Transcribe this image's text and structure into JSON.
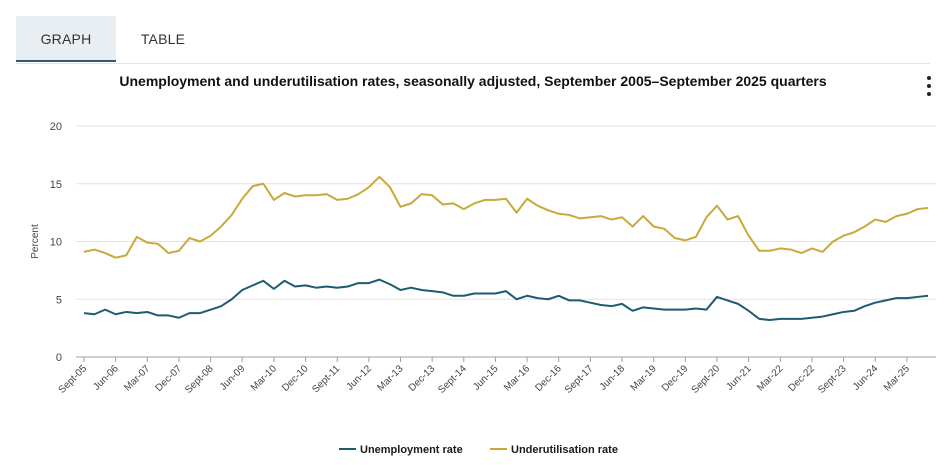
{
  "tabs": [
    {
      "label": "GRAPH",
      "active": true
    },
    {
      "label": "TABLE",
      "active": false
    }
  ],
  "menu_icon": "more-vertical-icon",
  "colors": {
    "unemployment": "#1d5b72",
    "underutilisation": "#c8a93b",
    "grid": "#e3e3e3",
    "axis": "#9aa0a6",
    "tab_accent": "#2a5a75"
  },
  "chart_data": {
    "type": "line",
    "title": "Unemployment and underutilisation rates, seasonally adjusted, September 2005–September 2025 quarters",
    "xlabel": "",
    "ylabel": "Percent",
    "ylim": [
      0,
      20
    ],
    "yticks": [
      0,
      5,
      10,
      15,
      20
    ],
    "grid": true,
    "legend": "bottom-center",
    "xticks": [
      "Sept-05",
      "Jun-06",
      "Mar-07",
      "Dec-07",
      "Sept-08",
      "Jun-09",
      "Mar-10",
      "Dec-10",
      "Sept-11",
      "Jun-12",
      "Mar-13",
      "Dec-13",
      "Sept-14",
      "Jun-15",
      "Mar-16",
      "Dec-16",
      "Sept-17",
      "Jun-18",
      "Mar-19",
      "Dec-19",
      "Sept-20",
      "Jun-21",
      "Mar-22",
      "Dec-22",
      "Sept-23",
      "Jun-24",
      "Mar-25"
    ],
    "x_count": 81,
    "series": [
      {
        "name": "Unemployment rate",
        "values": [
          3.8,
          3.7,
          4.1,
          3.7,
          3.9,
          3.8,
          3.9,
          3.6,
          3.6,
          3.4,
          3.8,
          3.8,
          4.1,
          4.4,
          5.0,
          5.8,
          6.2,
          6.6,
          5.9,
          6.6,
          6.1,
          6.2,
          6.0,
          6.1,
          6.0,
          6.1,
          6.4,
          6.4,
          6.7,
          6.3,
          5.8,
          6.0,
          5.8,
          5.7,
          5.6,
          5.3,
          5.3,
          5.5,
          5.5,
          5.5,
          5.7,
          5.0,
          5.3,
          5.1,
          5.0,
          5.3,
          4.9,
          4.9,
          4.7,
          4.5,
          4.4,
          4.6,
          4.0,
          4.3,
          4.2,
          4.1,
          4.1,
          4.1,
          4.2,
          4.1,
          5.2,
          4.9,
          4.6,
          4.0,
          3.3,
          3.2,
          3.3,
          3.3,
          3.3,
          3.4,
          3.5,
          3.7,
          3.9,
          4.0,
          4.4,
          4.7,
          4.9,
          5.1,
          5.1,
          5.2,
          5.3
        ]
      },
      {
        "name": "Underutilisation rate",
        "values": [
          9.1,
          9.3,
          9.0,
          8.6,
          8.8,
          10.4,
          9.9,
          9.8,
          9.0,
          9.2,
          10.3,
          10.0,
          10.5,
          11.3,
          12.3,
          13.7,
          14.8,
          15.0,
          13.6,
          14.2,
          13.9,
          14.0,
          14.0,
          14.1,
          13.6,
          13.7,
          14.1,
          14.7,
          15.6,
          14.7,
          13.0,
          13.3,
          14.1,
          14.0,
          13.2,
          13.3,
          12.8,
          13.3,
          13.6,
          13.6,
          13.7,
          12.5,
          13.7,
          13.1,
          12.7,
          12.4,
          12.3,
          12.0,
          12.1,
          12.2,
          11.9,
          12.1,
          11.3,
          12.2,
          11.3,
          11.1,
          10.3,
          10.1,
          10.4,
          12.1,
          13.1,
          11.9,
          12.2,
          10.5,
          9.2,
          9.2,
          9.4,
          9.3,
          9.0,
          9.4,
          9.1,
          10.0,
          10.5,
          10.8,
          11.3,
          11.9,
          11.7,
          12.2,
          12.4,
          12.8,
          12.9
        ]
      }
    ]
  }
}
